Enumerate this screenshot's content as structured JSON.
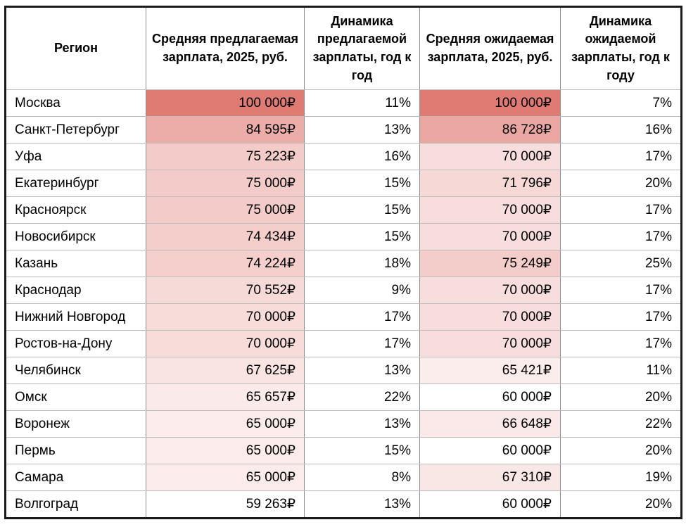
{
  "chart_data": {
    "type": "table",
    "columns": [
      "Регион",
      "Средняя предлагаемая зарплата, 2025, руб.",
      "Динамика предлагаемой зарплаты, год к год",
      "Средняя ожидаемая зарплата, 2025, руб.",
      "Динамика ожидаемой зарплаты, год к году"
    ],
    "heatmap": {
      "min_color": "#ffffff",
      "max_color": "#e07b74",
      "offered_range": [
        59263,
        100000
      ],
      "expected_range": [
        60000,
        100000
      ],
      "applies_to": [
        "offered_salary",
        "expected_salary"
      ]
    },
    "rows": [
      {
        "region": "Москва",
        "offered": 100000,
        "offered_display": "100 000₽",
        "offered_yoy": "11%",
        "expected": 100000,
        "expected_display": "100 000₽",
        "expected_yoy": "7%"
      },
      {
        "region": "Санкт-Петербург",
        "offered": 84595,
        "offered_display": "84 595₽",
        "offered_yoy": "13%",
        "expected": 86728,
        "expected_display": "86 728₽",
        "expected_yoy": "16%"
      },
      {
        "region": "Уфа",
        "offered": 75223,
        "offered_display": "75 223₽",
        "offered_yoy": "16%",
        "expected": 70000,
        "expected_display": "70 000₽",
        "expected_yoy": "17%"
      },
      {
        "region": "Екатеринбург",
        "offered": 75000,
        "offered_display": "75 000₽",
        "offered_yoy": "15%",
        "expected": 71796,
        "expected_display": "71 796₽",
        "expected_yoy": "20%"
      },
      {
        "region": "Красноярск",
        "offered": 75000,
        "offered_display": "75 000₽",
        "offered_yoy": "15%",
        "expected": 70000,
        "expected_display": "70 000₽",
        "expected_yoy": "17%"
      },
      {
        "region": "Новосибирск",
        "offered": 74434,
        "offered_display": "74 434₽",
        "offered_yoy": "15%",
        "expected": 70000,
        "expected_display": "70 000₽",
        "expected_yoy": "17%"
      },
      {
        "region": "Казань",
        "offered": 74224,
        "offered_display": "74 224₽",
        "offered_yoy": "18%",
        "expected": 75249,
        "expected_display": "75 249₽",
        "expected_yoy": "25%"
      },
      {
        "region": "Краснодар",
        "offered": 70552,
        "offered_display": "70 552₽",
        "offered_yoy": "9%",
        "expected": 70000,
        "expected_display": "70 000₽",
        "expected_yoy": "17%"
      },
      {
        "region": "Нижний Новгород",
        "offered": 70000,
        "offered_display": "70 000₽",
        "offered_yoy": "17%",
        "expected": 70000,
        "expected_display": "70 000₽",
        "expected_yoy": "17%"
      },
      {
        "region": "Ростов-на-Дону",
        "offered": 70000,
        "offered_display": "70 000₽",
        "offered_yoy": "17%",
        "expected": 70000,
        "expected_display": "70 000₽",
        "expected_yoy": "17%"
      },
      {
        "region": "Челябинск",
        "offered": 67625,
        "offered_display": "67 625₽",
        "offered_yoy": "13%",
        "expected": 65421,
        "expected_display": "65 421₽",
        "expected_yoy": "11%"
      },
      {
        "region": "Омск",
        "offered": 65657,
        "offered_display": "65 657₽",
        "offered_yoy": "22%",
        "expected": 60000,
        "expected_display": "60 000₽",
        "expected_yoy": "20%"
      },
      {
        "region": "Воронеж",
        "offered": 65000,
        "offered_display": "65 000₽",
        "offered_yoy": "13%",
        "expected": 66648,
        "expected_display": "66 648₽",
        "expected_yoy": "22%"
      },
      {
        "region": "Пермь",
        "offered": 65000,
        "offered_display": "65 000₽",
        "offered_yoy": "15%",
        "expected": 60000,
        "expected_display": "60 000₽",
        "expected_yoy": "20%"
      },
      {
        "region": "Самара",
        "offered": 65000,
        "offered_display": "65 000₽",
        "offered_yoy": "8%",
        "expected": 67310,
        "expected_display": "67 310₽",
        "expected_yoy": "19%"
      },
      {
        "region": "Волгоград",
        "offered": 59263,
        "offered_display": "59 263₽",
        "offered_yoy": "13%",
        "expected": 60000,
        "expected_display": "60 000₽",
        "expected_yoy": "20%"
      }
    ]
  }
}
